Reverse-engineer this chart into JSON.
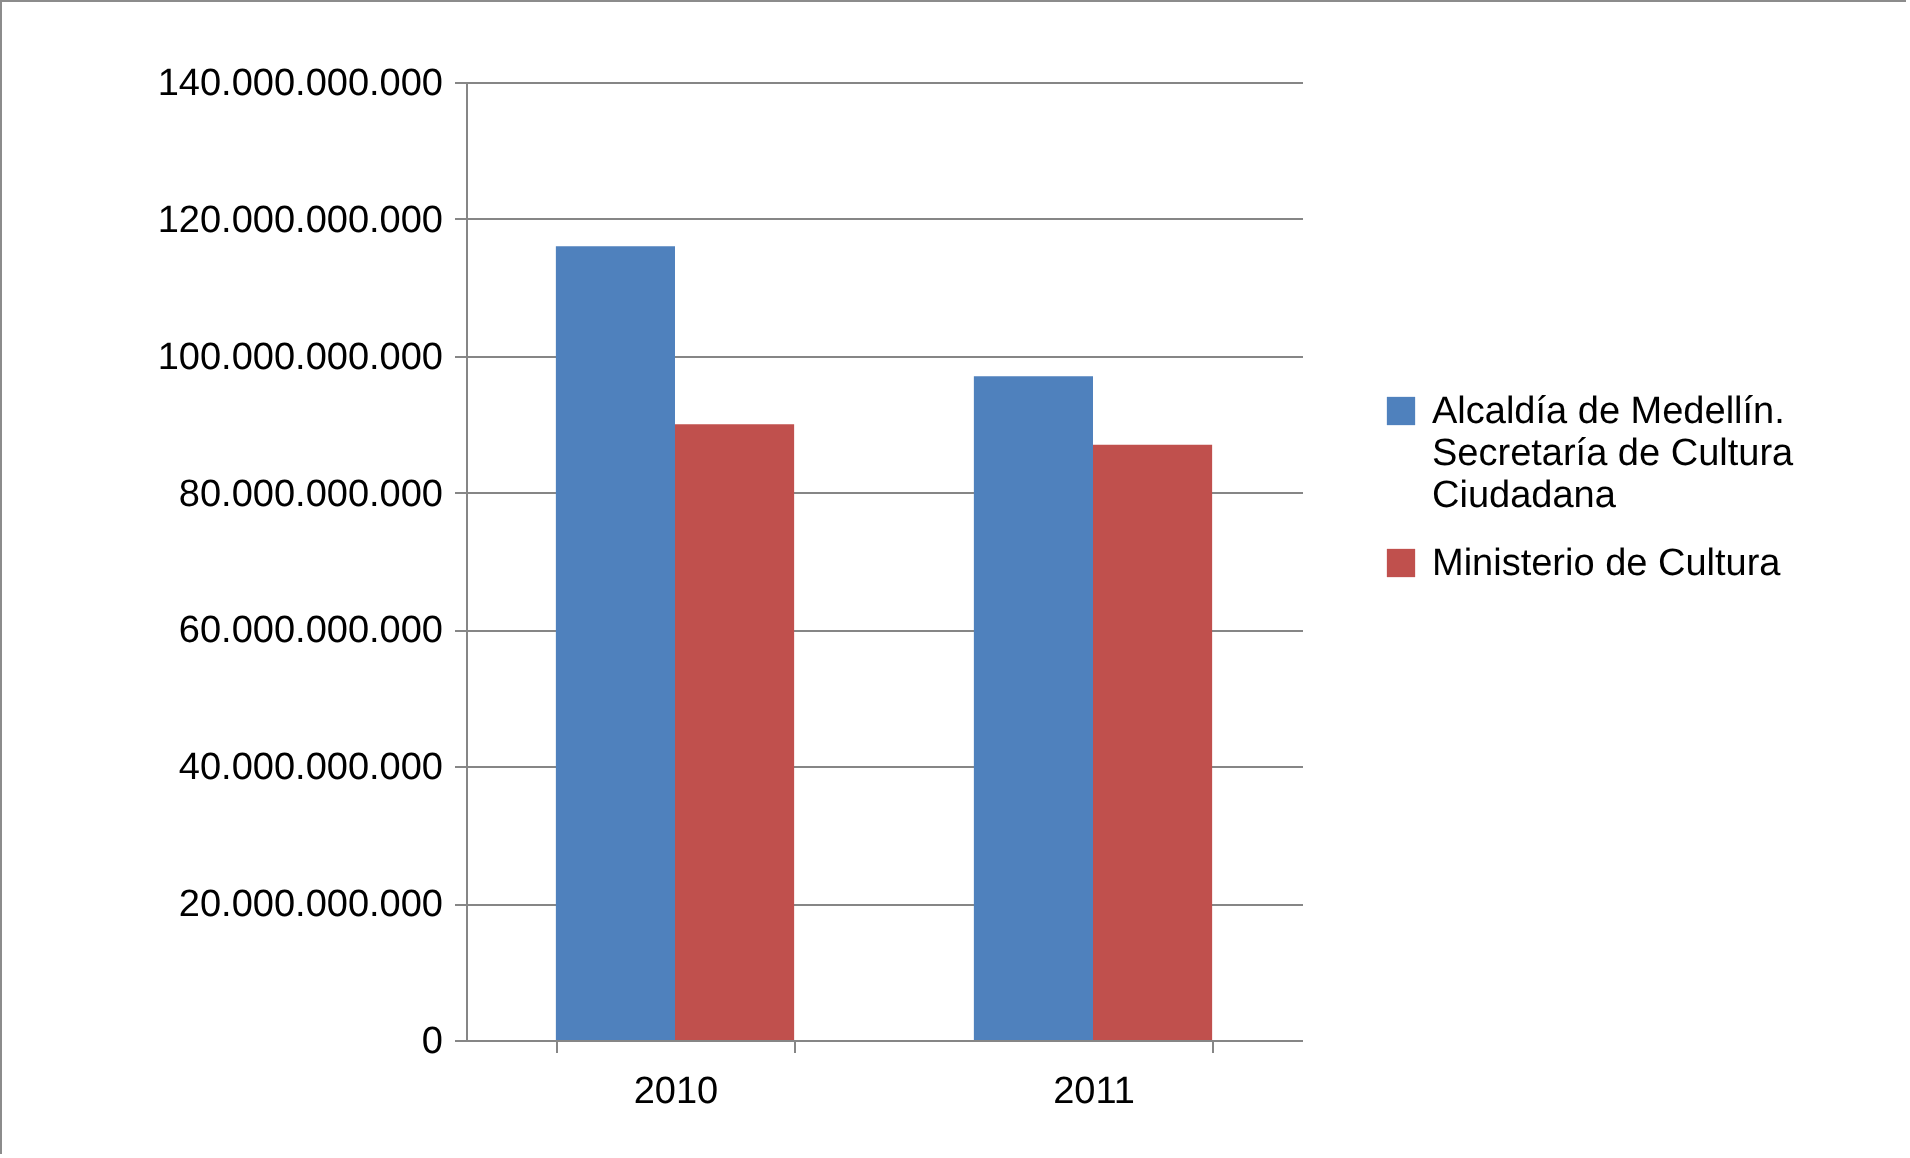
{
  "chart_data": {
    "type": "bar",
    "categories": [
      "2010",
      "2011"
    ],
    "series": [
      {
        "name": "Alcaldía de Medellín. Secretaría de Cultura Ciudadana",
        "color": "#4f81bd",
        "values": [
          116000000000,
          97000000000
        ]
      },
      {
        "name": "Ministerio de Cultura",
        "color": "#c0504d",
        "values": [
          90000000000,
          87000000000
        ]
      }
    ],
    "ylim": [
      0,
      140000000000
    ],
    "yticks": [
      0,
      {
        "value": 20000000000,
        "label": "20.000.000.000"
      },
      {
        "value": 40000000000,
        "label": "40.000.000.000"
      },
      {
        "value": 60000000000,
        "label": "60.000.000.000"
      },
      {
        "value": 80000000000,
        "label": "80.000.000.000"
      },
      {
        "value": 100000000000,
        "label": "100.000.000.000"
      },
      {
        "value": 120000000000,
        "label": "120.000.000.000"
      },
      {
        "value": 140000000000,
        "label": "140.000.000.000"
      }
    ],
    "grid": "y",
    "legend": "right"
  }
}
